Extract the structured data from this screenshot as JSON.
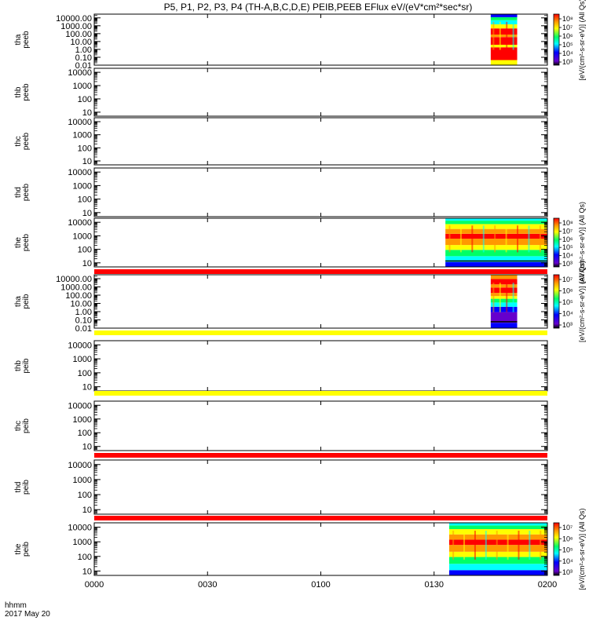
{
  "title": "P5, P1, P2, P3, P4 (TH-A,B,C,D,E) PEIB,PEEB EFlux eV/(eV*cm²*sec*sr)",
  "time_axis": {
    "label_top": "hhmm",
    "label_bottom": "2017 May 20",
    "ticks": [
      "0000",
      "0030",
      "0100",
      "0130",
      "0200"
    ],
    "range_minutes": [
      0,
      120
    ]
  },
  "colorbar_unit": "[eV/(cm²-s-sr-eV)] (All Qs)",
  "colors": {
    "red": "#ff0000",
    "orange": "#ff9900",
    "yellow": "#ffff00",
    "green": "#00ff66",
    "cyan": "#00ffff",
    "blue": "#0000ff",
    "purple": "#6600cc",
    "black": "#000000"
  },
  "chart_data": [
    {
      "type": "heatmap",
      "panel": "tha peeb",
      "ylabel": [
        "tha",
        "peeb"
      ],
      "yticks": [
        "10000.00",
        "1000.00",
        "100.00",
        "10.00",
        "1.00",
        "0.10",
        "0.01"
      ],
      "ylim": [
        0.01,
        30000
      ],
      "yscale": "log",
      "data_start_time": "0145",
      "data_end_time": "0152",
      "colorbar_ticks": [
        "10⁸",
        "10⁷",
        "10⁶",
        "10⁵",
        "10⁴",
        "10³"
      ]
    },
    {
      "type": "heatmap",
      "panel": "thb peeb",
      "ylabel": [
        "thb",
        "peeb"
      ],
      "yticks": [
        "10000",
        "1000",
        "100",
        "10"
      ],
      "ylim": [
        5,
        20000
      ],
      "yscale": "log"
    },
    {
      "type": "heatmap",
      "panel": "thc peeb",
      "ylabel": [
        "thc",
        "peeb"
      ],
      "yticks": [
        "10000",
        "1000",
        "100",
        "10"
      ],
      "ylim": [
        5,
        20000
      ],
      "yscale": "log"
    },
    {
      "type": "heatmap",
      "panel": "thd peeb",
      "ylabel": [
        "thd",
        "peeb"
      ],
      "yticks": [
        "10000",
        "1000",
        "100",
        "10"
      ],
      "ylim": [
        5,
        20000
      ],
      "yscale": "log"
    },
    {
      "type": "heatmap",
      "panel": "the peeb",
      "ylabel": [
        "the",
        "peeb"
      ],
      "yticks": [
        "10000",
        "1000",
        "100",
        "10"
      ],
      "ylim": [
        5,
        20000
      ],
      "yscale": "log",
      "data_start_time": "0133",
      "data_end_time": "0200",
      "colorbar_ticks": [
        "10⁸",
        "10⁷",
        "10⁶",
        "10⁵",
        "10⁴",
        "10³"
      ]
    },
    {
      "type": "heatmap",
      "panel": "tha peib",
      "ylabel": [
        "tha",
        "peib"
      ],
      "yticks": [
        "10000.00",
        "1000.00",
        "100.00",
        "10.00",
        "1.00",
        "0.10",
        "0.01"
      ],
      "ylim": [
        0.01,
        30000
      ],
      "yscale": "log",
      "data_start_time": "0145",
      "data_end_time": "0152",
      "colorbar_ticks": [
        "10⁷",
        "10⁶",
        "10⁵",
        "10⁴",
        "10³"
      ]
    },
    {
      "type": "heatmap",
      "panel": "thb peib",
      "ylabel": [
        "thb",
        "peib"
      ],
      "yticks": [
        "10000",
        "1000",
        "100",
        "10"
      ],
      "ylim": [
        5,
        20000
      ],
      "yscale": "log"
    },
    {
      "type": "heatmap",
      "panel": "thc peib",
      "ylabel": [
        "thc",
        "peib"
      ],
      "yticks": [
        "10000",
        "1000",
        "100",
        "10"
      ],
      "ylim": [
        5,
        20000
      ],
      "yscale": "log"
    },
    {
      "type": "heatmap",
      "panel": "thd peib",
      "ylabel": [
        "thd",
        "peib"
      ],
      "yticks": [
        "10000",
        "1000",
        "100",
        "10"
      ],
      "ylim": [
        5,
        20000
      ],
      "yscale": "log"
    },
    {
      "type": "heatmap",
      "panel": "the peib",
      "ylabel": [
        "the",
        "peib"
      ],
      "yticks": [
        "10000",
        "1000",
        "100",
        "10"
      ],
      "ylim": [
        5,
        20000
      ],
      "yscale": "log",
      "data_start_time": "0134",
      "data_end_time": "0200",
      "colorbar_ticks": [
        "10⁷",
        "10⁶",
        "10⁵",
        "10⁴",
        "10³"
      ]
    }
  ]
}
